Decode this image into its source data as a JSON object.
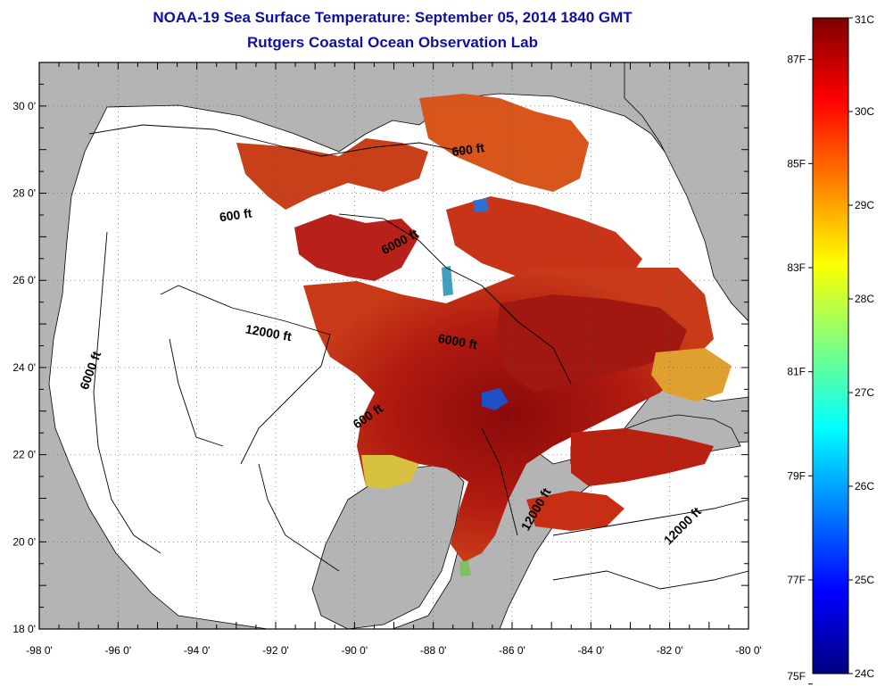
{
  "header": {
    "title": "NOAA-19 Sea Surface Temperature:  September 05, 2014 1840 GMT",
    "subtitle": "Rutgers Coastal Ocean Observation Lab"
  },
  "map": {
    "lon_labels": [
      "-98 0'",
      "-96 0'",
      "-94 0'",
      "-92 0'",
      "-90 0'",
      "-88 0'",
      "-86 0'",
      "-84 0'",
      "-82 0'",
      "-80 0'"
    ],
    "lat_labels": [
      "30 0'",
      "28 0'",
      "26 0'",
      "24 0'",
      "22 0'",
      "20 0'",
      "18 0'"
    ],
    "lon_range": [
      -98,
      -80
    ],
    "lat_range": [
      18,
      31
    ],
    "contour_labels": [
      {
        "text": "600 ft",
        "lon": -93.0,
        "lat": 27.4,
        "rotate": -8
      },
      {
        "text": "6000 ft",
        "lon": -88.8,
        "lat": 26.8,
        "rotate": -28
      },
      {
        "text": "600 ft",
        "lon": -87.1,
        "lat": 28.9,
        "rotate": -8
      },
      {
        "text": "12000 ft",
        "lon": -92.2,
        "lat": 24.7,
        "rotate": 10
      },
      {
        "text": "6000 ft",
        "lon": -96.6,
        "lat": 23.9,
        "rotate": -70
      },
      {
        "text": "6000 ft",
        "lon": -87.4,
        "lat": 24.5,
        "rotate": 10
      },
      {
        "text": "600 ft",
        "lon": -89.6,
        "lat": 22.8,
        "rotate": -35
      },
      {
        "text": "12000 ft",
        "lon": -85.3,
        "lat": 20.7,
        "rotate": -60
      },
      {
        "text": "12000 ft",
        "lon": -81.6,
        "lat": 20.3,
        "rotate": -45
      }
    ],
    "colors": {
      "land": "#b4b4b4",
      "water_nodata": "#ffffff"
    }
  },
  "colorbar": {
    "c_labels": [
      "31C",
      "30C",
      "29C",
      "28C",
      "27C",
      "26C",
      "25C",
      "24C"
    ],
    "f_labels": [
      "87F",
      "85F",
      "83F",
      "81F",
      "79F",
      "77F",
      "75F"
    ],
    "c_range": [
      24,
      31
    ],
    "f_values": [
      87,
      85,
      83,
      81,
      79,
      77,
      75
    ],
    "stops": [
      "#00007f",
      "#0000ff",
      "#007fff",
      "#00ffff",
      "#7fff7f",
      "#ffff00",
      "#ff7f00",
      "#ff0000",
      "#7f0000"
    ]
  }
}
